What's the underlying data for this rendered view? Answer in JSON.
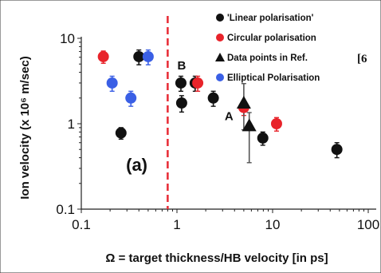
{
  "chart_data": {
    "type": "scatter",
    "xscale": "log",
    "yscale": "log",
    "xlim": [
      0.1,
      100
    ],
    "ylim": [
      0.1,
      10
    ],
    "x_ticks": [
      "0.1",
      "1",
      "10",
      "100"
    ],
    "y_ticks": [
      "10",
      "1",
      "0.1"
    ],
    "xlabel": "Ω = target thickness/HB velocity [in ps]",
    "ylabel": "Ion velocity (x 10⁶ m/sec)",
    "vline": {
      "x": 0.8,
      "color": "#e8303a"
    },
    "annotations": [
      {
        "text": "B",
        "x": 1.12,
        "y": 4.3
      },
      {
        "text": "A",
        "x": 3.5,
        "y": 1.1
      },
      {
        "text": "(a)",
        "x": 0.38,
        "y": 0.28
      }
    ],
    "series": [
      {
        "name": "'Linear polarisation'",
        "marker": "circle",
        "color": "#111111",
        "points": [
          {
            "x": 0.26,
            "y": 0.78,
            "err": 0.12
          },
          {
            "x": 0.4,
            "y": 6.1,
            "err": 1.2
          },
          {
            "x": 1.1,
            "y": 3.0,
            "err": 0.6
          },
          {
            "x": 1.12,
            "y": 1.75,
            "err": 0.38
          },
          {
            "x": 1.55,
            "y": 3.0,
            "err": 0.6
          },
          {
            "x": 2.4,
            "y": 2.0,
            "err": 0.4
          },
          {
            "x": 7.9,
            "y": 0.68,
            "err": 0.12
          },
          {
            "x": 47,
            "y": 0.5,
            "err": 0.1
          }
        ]
      },
      {
        "name": "Circular polarisation",
        "marker": "circle",
        "color": "#e8232a",
        "points": [
          {
            "x": 0.17,
            "y": 6.1,
            "err": 1.0
          },
          {
            "x": 1.65,
            "y": 3.0,
            "err": 0.6
          },
          {
            "x": 5.0,
            "y": 1.55,
            "err": 0.3
          },
          {
            "x": 11,
            "y": 1.0,
            "err": 0.18
          }
        ]
      },
      {
        "name": "Data points in Ref.",
        "name_suffix": "[6",
        "marker": "triangle",
        "color": "#111111",
        "points": [
          {
            "x": 5.0,
            "y": 1.75,
            "err_low": 0.9,
            "err_high": 1.2
          },
          {
            "x": 5.7,
            "y": 0.95,
            "err_low": 0.6,
            "err_high": 0.4
          }
        ]
      },
      {
        "name": "Elliptical Polarisation",
        "marker": "circle",
        "color": "#3a5fe5",
        "points": [
          {
            "x": 0.21,
            "y": 3.0,
            "err": 0.6
          },
          {
            "x": 0.33,
            "y": 2.0,
            "err": 0.4
          },
          {
            "x": 0.5,
            "y": 6.1,
            "err": 1.2
          }
        ]
      }
    ]
  }
}
